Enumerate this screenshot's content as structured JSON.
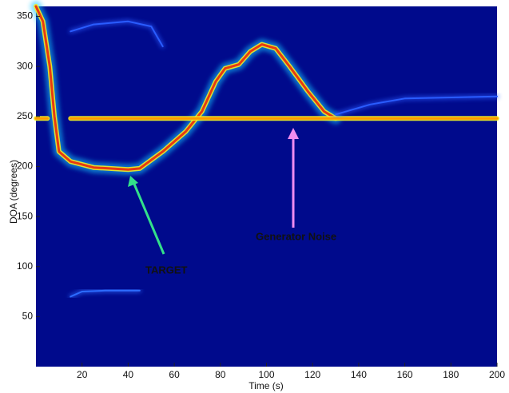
{
  "chart_data": {
    "type": "heatmap",
    "xlabel": "Time (s)",
    "ylabel": "DOA (degrees)",
    "xlim": [
      0,
      200
    ],
    "xticks": [
      20,
      40,
      60,
      80,
      100,
      120,
      140,
      160,
      180,
      200
    ],
    "ylim": [
      0,
      360
    ],
    "yticks": [
      50,
      100,
      150,
      200,
      250,
      300,
      350
    ],
    "background": "#000a8c",
    "glow_color": "#12c8ff",
    "series": [
      {
        "color": "#e83a10",
        "glow": true,
        "x": [
          0,
          3,
          6,
          8,
          10,
          15,
          25,
          40,
          45,
          55,
          65,
          72,
          78,
          82,
          88,
          93,
          98,
          104,
          110,
          118,
          125,
          130
        ],
        "values": [
          360,
          345,
          300,
          250,
          215,
          205,
          199,
          197,
          198,
          215,
          235,
          255,
          285,
          298,
          302,
          315,
          322,
          318,
          300,
          275,
          255,
          248
        ]
      },
      {
        "color": "#ff9a00",
        "glow": true,
        "x": [
          0,
          5,
          10,
          15,
          60,
          100,
          130,
          160,
          200
        ],
        "values": [
          248,
          248,
          null,
          248,
          248,
          248,
          248,
          248,
          248
        ]
      },
      {
        "color": "#2d6cff",
        "glow": false,
        "x": [
          15,
          20,
          30,
          45
        ],
        "values": [
          70,
          75,
          76,
          76
        ]
      },
      {
        "color": "#2a5cff",
        "glow": false,
        "x": [
          15,
          25,
          40,
          50,
          55
        ],
        "values": [
          335,
          342,
          345,
          340,
          320
        ]
      },
      {
        "color": "#2a5cff",
        "glow": false,
        "x": [
          130,
          145,
          160,
          200
        ],
        "values": [
          252,
          262,
          268,
          270
        ]
      }
    ],
    "annotations": [
      {
        "text": "TARGET",
        "color": "#33e08a"
      },
      {
        "text": "Generator Noise",
        "color": "#f08cf0"
      }
    ]
  }
}
